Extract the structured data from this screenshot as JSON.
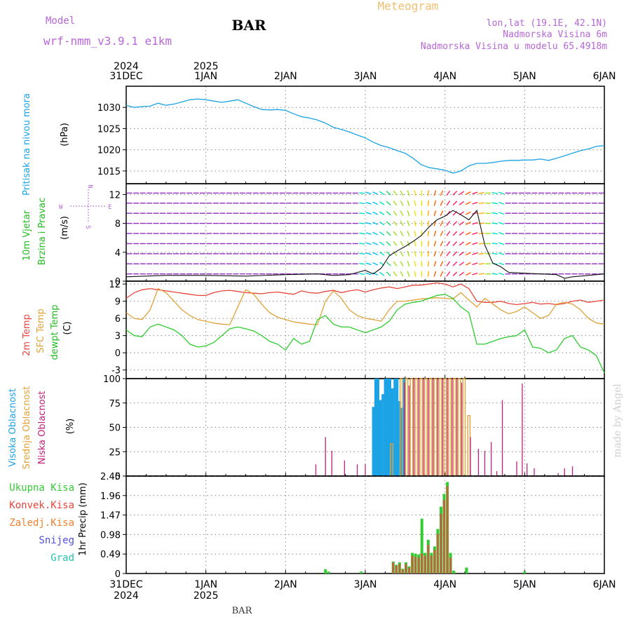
{
  "header": {
    "model_label": "Model",
    "model_name": "wrf-nmm_v3.9.1 e1km",
    "station": "BAR",
    "meteogram": "Meteogram",
    "lonlat": "lon,lat (19.1E, 42.1N)",
    "altitude": "Nadmorska Visina 6m",
    "model_altitude": "Nadmorska Visina u modelu 65.4918m",
    "footer_station": "BAR",
    "watermark": "made by Angel"
  },
  "colors": {
    "pressure": "#1ca3e6",
    "temp2m": "#e8453c",
    "sfc": "#e0a23a",
    "dewpt": "#2ecc2e",
    "high_cloud": "#1ca3e6",
    "mid_cloud": "#e0a23a",
    "low_cloud": "#c0207a",
    "total": "#33cc33",
    "conv": "#e8453c",
    "frozen": "#f08030",
    "snow": "#5050e0",
    "hail": "#22c4b0",
    "model": "#b866d9",
    "meteogram": "#f0c070",
    "lonlat": "#b866d9",
    "altitude": "#e8453c"
  },
  "time_axis": {
    "ticks": [
      {
        "pos": 0,
        "day": "31DEC",
        "year": "2024"
      },
      {
        "pos": 1,
        "day": "1JAN",
        "year": "2025"
      },
      {
        "pos": 2,
        "day": "2JAN",
        "year": ""
      },
      {
        "pos": 3,
        "day": "3JAN",
        "year": ""
      },
      {
        "pos": 4,
        "day": "4JAN",
        "year": ""
      },
      {
        "pos": 5,
        "day": "5JAN",
        "year": ""
      },
      {
        "pos": 6,
        "day": "6JAN",
        "year": ""
      }
    ]
  },
  "chart_data": [
    {
      "type": "line",
      "panel": "pressure",
      "ylabel": "Pritisak na nivou mora",
      "unit": "(hPa)",
      "ylim": [
        1012,
        1035
      ],
      "yticks": [
        1015,
        1020,
        1025,
        1030
      ],
      "x": [
        0,
        0.1,
        0.2,
        0.3,
        0.4,
        0.5,
        0.6,
        0.7,
        0.8,
        0.9,
        1.0,
        1.1,
        1.2,
        1.3,
        1.4,
        1.5,
        1.6,
        1.7,
        1.8,
        1.9,
        2.0,
        2.1,
        2.2,
        2.3,
        2.4,
        2.5,
        2.6,
        2.7,
        2.8,
        2.9,
        3.0,
        3.1,
        3.2,
        3.3,
        3.4,
        3.5,
        3.6,
        3.7,
        3.8,
        3.9,
        4.0,
        4.1,
        4.2,
        4.3,
        4.4,
        4.5,
        4.6,
        4.7,
        4.8,
        4.9,
        5.0,
        5.1,
        5.2,
        5.3,
        5.4,
        5.5,
        5.6,
        5.7,
        5.8,
        5.9,
        6.0
      ],
      "series": [
        {
          "values": [
            1030.5,
            1030.0,
            1030.2,
            1030.3,
            1031.0,
            1030.5,
            1030.8,
            1031.3,
            1031.8,
            1032.0,
            1031.8,
            1031.5,
            1031.2,
            1031.5,
            1031.8,
            1031.0,
            1030.2,
            1029.5,
            1029.4,
            1029.5,
            1029.3,
            1028.5,
            1027.8,
            1027.5,
            1027.0,
            1026.3,
            1025.3,
            1024.8,
            1024.2,
            1023.5,
            1022.8,
            1021.8,
            1021.0,
            1020.5,
            1019.8,
            1019.2,
            1018.0,
            1016.5,
            1015.8,
            1015.5,
            1015.2,
            1014.5,
            1015.0,
            1016.2,
            1016.8,
            1016.8,
            1017.0,
            1017.3,
            1017.5,
            1017.5,
            1017.6,
            1017.6,
            1017.8,
            1017.5,
            1018.0,
            1018.6,
            1019.2,
            1019.8,
            1020.2,
            1020.8,
            1021.0
          ]
        }
      ]
    },
    {
      "type": "line",
      "panel": "wind",
      "ylabel": "10m Vjetar",
      "ylabel2": "Brzina i Pravac",
      "unit": "(m/s)",
      "ylim": [
        0,
        13.5
      ],
      "yticks": [
        0,
        4,
        8,
        12
      ],
      "compass": {
        "n": "N",
        "s": "S",
        "e": "E",
        "w": "W"
      },
      "x": [
        0,
        0.5,
        1.0,
        1.5,
        2.0,
        2.4,
        2.6,
        2.8,
        3.0,
        3.1,
        3.2,
        3.3,
        3.4,
        3.5,
        3.6,
        3.7,
        3.8,
        3.9,
        4.0,
        4.1,
        4.2,
        4.3,
        4.4,
        4.5,
        4.6,
        4.7,
        4.8,
        5.0,
        5.2,
        5.4,
        5.5,
        5.6,
        5.8,
        6.0
      ],
      "series": [
        {
          "name": "speed",
          "values": [
            0.6,
            0.8,
            0.8,
            0.7,
            0.9,
            1.0,
            0.8,
            0.9,
            1.5,
            1.0,
            1.8,
            3.5,
            4.2,
            4.8,
            5.5,
            6.3,
            7.5,
            8.5,
            9.0,
            9.8,
            9.2,
            8.5,
            9.8,
            5.0,
            2.5,
            2.0,
            1.2,
            1.1,
            1.0,
            0.9,
            0.4,
            0.6,
            0.8,
            1.0
          ]
        }
      ]
    },
    {
      "type": "line",
      "panel": "temperature",
      "ylabel": "2m Temp",
      "ylabel2": "SFC Temp",
      "ylabel3": "dewpt Temp",
      "unit": "(C)",
      "ylim": [
        -4.5,
        12.5
      ],
      "yticks": [
        -3,
        0,
        3,
        6,
        9,
        12
      ],
      "x": [
        0,
        0.1,
        0.2,
        0.3,
        0.4,
        0.5,
        0.6,
        0.7,
        0.8,
        0.9,
        1.0,
        1.1,
        1.2,
        1.3,
        1.4,
        1.5,
        1.6,
        1.7,
        1.8,
        1.9,
        2.0,
        2.1,
        2.2,
        2.3,
        2.4,
        2.5,
        2.6,
        2.7,
        2.8,
        2.9,
        3.0,
        3.1,
        3.2,
        3.3,
        3.4,
        3.5,
        3.6,
        3.7,
        3.8,
        3.9,
        4.0,
        4.1,
        4.2,
        4.3,
        4.4,
        4.5,
        4.6,
        4.7,
        4.8,
        4.9,
        5.0,
        5.1,
        5.2,
        5.3,
        5.4,
        5.5,
        5.6,
        5.7,
        5.8,
        5.9,
        6.0
      ],
      "series": [
        {
          "name": "2m Temp",
          "values": [
            9.5,
            10.5,
            11.0,
            11.2,
            11.0,
            10.8,
            10.6,
            10.4,
            10.2,
            10.0,
            10.0,
            10.5,
            10.8,
            10.9,
            10.7,
            10.5,
            10.4,
            10.3,
            10.5,
            10.6,
            10.4,
            10.2,
            10.8,
            10.5,
            10.4,
            10.7,
            10.9,
            10.5,
            10.8,
            11.0,
            10.6,
            11.0,
            11.3,
            11.5,
            11.2,
            11.5,
            11.8,
            11.8,
            12.0,
            12.2,
            12.0,
            11.5,
            12.0,
            11.2,
            9.0,
            8.8,
            8.8,
            9.0,
            8.6,
            8.4,
            8.6,
            8.8,
            8.5,
            8.6,
            8.4,
            8.6,
            9.0,
            9.2,
            8.8,
            9.0,
            9.2
          ]
        },
        {
          "name": "SFC Temp",
          "values": [
            7.0,
            6.0,
            5.8,
            7.5,
            11.2,
            10.5,
            9.0,
            7.5,
            6.5,
            5.8,
            5.5,
            5.2,
            5.0,
            4.9,
            8.0,
            11.0,
            10.2,
            8.5,
            7.0,
            6.2,
            5.8,
            5.4,
            5.2,
            5.0,
            4.9,
            9.0,
            10.8,
            9.5,
            7.5,
            6.5,
            6.0,
            5.8,
            5.5,
            7.5,
            9.0,
            9.0,
            9.2,
            9.4,
            9.5,
            9.6,
            9.5,
            9.4,
            10.5,
            9.2,
            8.0,
            9.5,
            8.5,
            7.5,
            6.8,
            7.2,
            8.0,
            7.0,
            6.0,
            6.5,
            8.5,
            8.8,
            8.5,
            7.5,
            6.0,
            5.2,
            5.0
          ]
        },
        {
          "name": "dewpt Temp",
          "values": [
            4.0,
            3.0,
            2.8,
            4.5,
            5.0,
            4.5,
            4.0,
            3.0,
            1.5,
            1.0,
            1.2,
            1.8,
            3.0,
            4.2,
            4.5,
            4.2,
            3.8,
            3.0,
            2.0,
            1.5,
            0.5,
            2.5,
            1.5,
            2.0,
            5.8,
            6.5,
            5.0,
            4.5,
            4.5,
            4.0,
            3.5,
            4.0,
            4.5,
            5.5,
            7.5,
            8.5,
            8.8,
            9.0,
            9.5,
            10.0,
            10.2,
            9.5,
            8.0,
            7.0,
            1.5,
            1.5,
            2.0,
            2.5,
            2.8,
            3.0,
            4.0,
            1.0,
            0.8,
            0.0,
            0.5,
            2.5,
            3.0,
            1.0,
            0.5,
            -0.5,
            -3.5
          ]
        }
      ]
    },
    {
      "type": "bar",
      "panel": "cloud",
      "ylabel": "Visoka Oblacnost",
      "ylabel2": "Srednja Oblacnost",
      "ylabel3": "Niska Oblacnost",
      "unit": "(%)",
      "ylim": [
        0,
        100
      ],
      "yticks": [
        0,
        25,
        50,
        75,
        100
      ],
      "series": [
        {
          "name": "Visoka Oblacnost",
          "x": [
            3.1,
            3.13,
            3.16,
            3.19,
            3.22,
            3.25,
            3.28,
            3.31,
            3.34,
            3.37,
            3.4,
            3.43,
            3.46,
            3.49
          ],
          "values": [
            71,
            100,
            100,
            78,
            84,
            100,
            100,
            100,
            90,
            100,
            100,
            77,
            70,
            100
          ]
        },
        {
          "name": "Srednja Oblacnost",
          "x": [
            3.33,
            3.45,
            3.52,
            3.58,
            3.64,
            3.7,
            3.76,
            3.82,
            3.88,
            3.94,
            4.0,
            4.06,
            4.12,
            4.18,
            4.24,
            4.3
          ],
          "values": [
            33,
            100,
            100,
            100,
            100,
            100,
            100,
            100,
            100,
            100,
            100,
            100,
            100,
            100,
            100,
            62
          ]
        },
        {
          "name": "Niska Oblacnost",
          "x": [
            2.38,
            2.5,
            2.58,
            2.74,
            2.9,
            3.0,
            3.49,
            3.55,
            3.61,
            3.67,
            3.73,
            3.79,
            3.85,
            3.91,
            3.97,
            4.03,
            4.09,
            4.15,
            4.21,
            4.32,
            4.42,
            4.5,
            4.58,
            4.65,
            4.72,
            4.9,
            4.97,
            5.03,
            5.12,
            5.42,
            5.5,
            5.6
          ],
          "values": [
            12,
            40,
            26,
            16,
            12,
            12,
            96,
            93,
            100,
            100,
            100,
            100,
            100,
            100,
            100,
            100,
            100,
            100,
            96,
            40,
            28,
            26,
            35,
            5,
            78,
            15,
            95,
            13,
            8,
            3,
            8,
            10
          ]
        }
      ]
    },
    {
      "type": "bar",
      "panel": "precip",
      "ylabel": "1hr Precip",
      "unit": "(mm)",
      "ylim": [
        0,
        2.45
      ],
      "yticks": [
        0,
        0.49,
        0.98,
        1.47,
        1.96,
        2.45
      ],
      "legend": [
        "Ukupna Kisa",
        "Konvek.Kisa",
        "Zaledj.Kisa",
        "Snijeg",
        "Grad"
      ],
      "series": [
        {
          "name": "Ukupna Kisa",
          "x": [
            2.5,
            2.54,
            2.95,
            3.35,
            3.39,
            3.43,
            3.47,
            3.51,
            3.55,
            3.59,
            3.63,
            3.67,
            3.71,
            3.75,
            3.79,
            3.83,
            3.87,
            3.91,
            3.95,
            3.99,
            4.03,
            4.07,
            4.11,
            4.27,
            5.0
          ],
          "values": [
            0.11,
            0.05,
            0.05,
            0.3,
            0.22,
            0.28,
            0.12,
            0.28,
            0.18,
            0.52,
            0.5,
            0.48,
            1.38,
            0.52,
            0.85,
            0.52,
            0.68,
            1.12,
            1.68,
            2.0,
            2.3,
            0.52,
            0.07,
            0.15,
            0.05
          ]
        },
        {
          "name": "Konvek.Kisa",
          "x": [
            3.35,
            3.39,
            3.43,
            3.47,
            3.51,
            3.55,
            3.59,
            3.63,
            3.67,
            3.71,
            3.75,
            3.79,
            3.83,
            3.87,
            3.91,
            3.95,
            3.99,
            4.03,
            4.07
          ],
          "values": [
            0.28,
            0.2,
            0.24,
            0.1,
            0.24,
            0.15,
            0.45,
            0.42,
            0.4,
            0.5,
            0.45,
            0.72,
            0.45,
            0.6,
            1.0,
            1.5,
            1.85,
            2.2,
            0.4
          ]
        }
      ]
    }
  ]
}
